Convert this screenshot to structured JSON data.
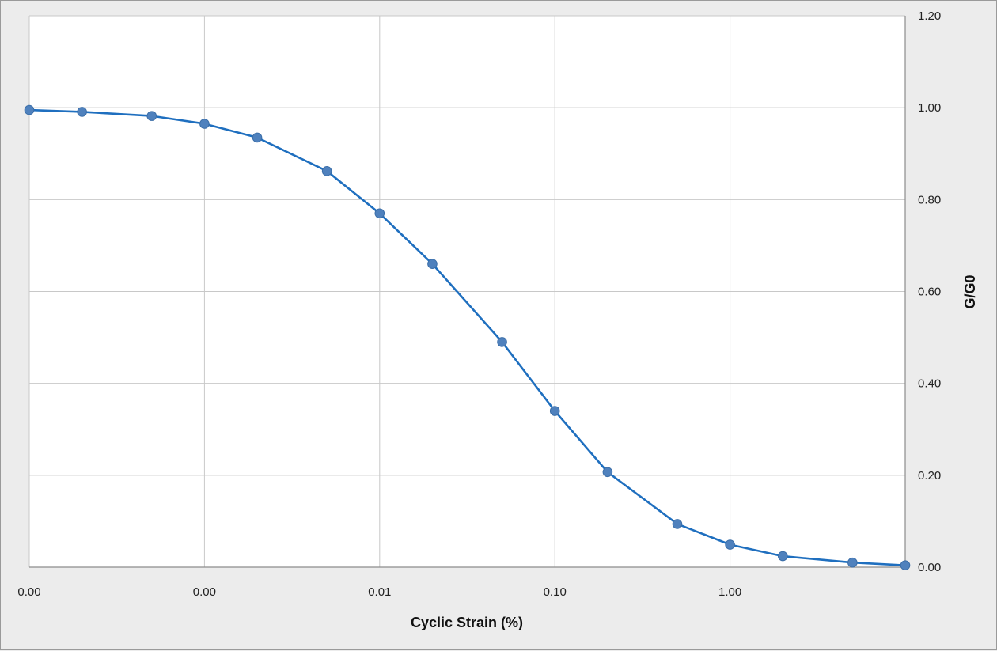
{
  "chart_data": {
    "type": "line",
    "xscale": "log",
    "xlabel": "Cyclic Strain (%)",
    "ylabel": "G/G0",
    "xlim": [
      0.0001,
      10
    ],
    "ylim": [
      0,
      1.2
    ],
    "grid": true,
    "x_tick_values": [
      0.0001,
      0.001,
      0.01,
      0.1,
      1,
      10
    ],
    "x_tick_labels": [
      "0.00",
      "0.00",
      "0.01",
      "0.10",
      "1.00",
      ""
    ],
    "y_tick_values": [
      0,
      0.2,
      0.4,
      0.6,
      0.8,
      1.0,
      1.2
    ],
    "y_tick_labels": [
      "0.00",
      "0.20",
      "0.40",
      "0.60",
      "0.80",
      "1.00",
      "1.20"
    ],
    "y_axis_side": "right",
    "line_color": "#1f6fbf",
    "marker_color": "#4f81bd",
    "series": [
      {
        "x": [
          0.0001,
          0.0002,
          0.0005,
          0.001,
          0.002,
          0.005,
          0.01,
          0.02,
          0.05,
          0.1,
          0.2,
          0.5,
          1,
          2,
          5,
          10
        ],
        "y": [
          0.995,
          0.991,
          0.982,
          0.965,
          0.935,
          0.862,
          0.77,
          0.66,
          0.49,
          0.34,
          0.207,
          0.094,
          0.049,
          0.024,
          0.01,
          0.004
        ]
      }
    ]
  }
}
